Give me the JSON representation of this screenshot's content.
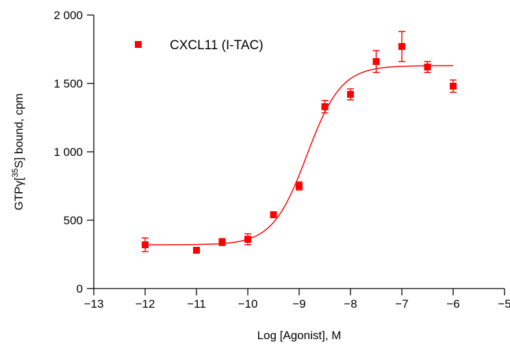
{
  "colors": {
    "series": "#ff0000",
    "axis": "#000000"
  },
  "chart_data": {
    "type": "scatter",
    "title": "",
    "xlabel": "Log [Agonist], M",
    "ylabel_prefix": "GTPγ[",
    "ylabel_superscript": "35",
    "ylabel_suffix": "S] bound, cpm",
    "xlim": [
      -13,
      -5
    ],
    "ylim": [
      0,
      2000
    ],
    "x_ticks": [
      -13,
      -12,
      -11,
      -10,
      -9,
      -8,
      -7,
      -6,
      -5
    ],
    "x_tick_labels": [
      "−13",
      "−12",
      "−11",
      "−10",
      "−9",
      "−8",
      "−7",
      "−6",
      "−5"
    ],
    "y_ticks": [
      0,
      500,
      1000,
      1500,
      2000
    ],
    "y_tick_labels": [
      "0",
      "500",
      "1 000",
      "1 500",
      "2 000"
    ],
    "legend": {
      "position": "top-left",
      "entries": [
        "CXCL11 (I-TAC)"
      ]
    },
    "series": [
      {
        "name": "CXCL11 (I-TAC)",
        "points": [
          {
            "x": -12,
            "y": 320,
            "err": 50
          },
          {
            "x": -11,
            "y": 280,
            "err": 0
          },
          {
            "x": -10.5,
            "y": 340,
            "err": 25
          },
          {
            "x": -10,
            "y": 360,
            "err": 40
          },
          {
            "x": -9.5,
            "y": 540,
            "err": 0
          },
          {
            "x": -9,
            "y": 750,
            "err": 30
          },
          {
            "x": -8.5,
            "y": 1330,
            "err": 45
          },
          {
            "x": -8,
            "y": 1420,
            "err": 40
          },
          {
            "x": -7.5,
            "y": 1660,
            "err": 80
          },
          {
            "x": -7,
            "y": 1770,
            "err": 110
          },
          {
            "x": -6.5,
            "y": 1620,
            "err": 40
          },
          {
            "x": -6,
            "y": 1480,
            "err": 45
          }
        ],
        "fit": {
          "model": "sigmoidal dose-response",
          "bottom": 320,
          "top": 1630,
          "logEC50": -8.85,
          "hill": 1.3,
          "x_range": [
            -12,
            -6
          ]
        }
      }
    ]
  }
}
